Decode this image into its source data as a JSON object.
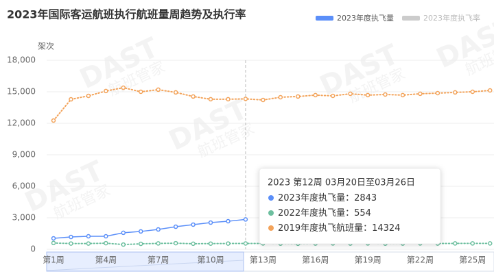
{
  "chart_data": {
    "type": "line",
    "title": "2023年国际客运航班执行航班量周趋势及执行率",
    "y_label": "架次",
    "legend": [
      {
        "name": "2023年度执飞量",
        "color": "#5b8ff9"
      },
      {
        "name": "2023年度执飞率",
        "color": "#cccccc"
      }
    ],
    "watermark": {
      "brand": "DAST",
      "name": "航班管家"
    },
    "categories": [
      "第1周",
      null,
      null,
      "第4周",
      null,
      null,
      "第7周",
      null,
      null,
      "第10周",
      null,
      null,
      "第13周",
      null,
      null,
      "第16周",
      null,
      null,
      "第19周",
      null,
      null,
      "第22周",
      null,
      null,
      "第25周",
      null
    ],
    "series": [
      {
        "name": "2023年度执飞量",
        "color": "#5b8ff9",
        "values": [
          1040,
          1170,
          1240,
          1240,
          1570,
          1700,
          1890,
          2150,
          2350,
          2540,
          2670,
          2843,
          null,
          null,
          null,
          null,
          null,
          null,
          null,
          null,
          null,
          null,
          null,
          null,
          null,
          null
        ]
      },
      {
        "name": "2022年度执飞量",
        "color": "#6dbf9f",
        "values": [
          600,
          550,
          550,
          580,
          450,
          520,
          560,
          580,
          530,
          540,
          550,
          554,
          560,
          540,
          530,
          550,
          560,
          550,
          560,
          540,
          550,
          560,
          550,
          560,
          560,
          560
        ]
      },
      {
        "name": "2019年度执飞航班量",
        "color": "#f3a35a",
        "values": [
          12260,
          14280,
          14610,
          15070,
          15390,
          15000,
          15200,
          14940,
          14550,
          14290,
          14290,
          14324,
          14220,
          14480,
          14550,
          14680,
          14610,
          14810,
          14680,
          14740,
          14680,
          14810,
          14870,
          14940,
          15000,
          15130
        ]
      }
    ],
    "ylim": [
      0,
      18000
    ],
    "yticks": [
      0,
      {
        "value": 3000,
        "label": "3,000"
      },
      {
        "value": 6000,
        "label": "6,000"
      },
      {
        "value": 9000,
        "label": "9,000"
      },
      {
        "value": 12000,
        "label": "12,000"
      },
      {
        "value": 15000,
        "label": "15,000"
      },
      {
        "value": 18000,
        "label": "18,000"
      }
    ],
    "grid": true,
    "tooltip": {
      "index": 11,
      "title": "2023 第12周 03月20日至03月26日",
      "separator": "："
    }
  }
}
